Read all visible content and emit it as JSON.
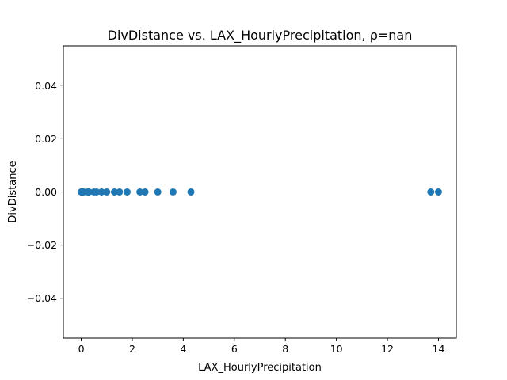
{
  "chart_data": {
    "type": "scatter",
    "title": "DivDistance vs. LAX_HourlyPrecipitation, ρ=nan",
    "xlabel": "LAX_HourlyPrecipitation",
    "ylabel": "DivDistance",
    "xlim": [
      -0.7,
      14.7
    ],
    "ylim": [
      -0.055,
      0.055
    ],
    "xticks": [
      0,
      2,
      4,
      6,
      8,
      10,
      12,
      14
    ],
    "xtick_labels": [
      "0",
      "2",
      "4",
      "6",
      "8",
      "10",
      "12",
      "14"
    ],
    "yticks": [
      -0.04,
      -0.02,
      0.0,
      0.02,
      0.04
    ],
    "ytick_labels": [
      "−0.04",
      "−0.02",
      "0.00",
      "0.02",
      "0.04"
    ],
    "grid": false,
    "marker_color": "#1f77b4",
    "points": [
      {
        "x": 0.0,
        "y": 0
      },
      {
        "x": 0.01,
        "y": 0
      },
      {
        "x": 0.02,
        "y": 0
      },
      {
        "x": 0.03,
        "y": 0
      },
      {
        "x": 0.05,
        "y": 0
      },
      {
        "x": 0.1,
        "y": 0
      },
      {
        "x": 0.25,
        "y": 0
      },
      {
        "x": 0.3,
        "y": 0
      },
      {
        "x": 0.5,
        "y": 0
      },
      {
        "x": 0.6,
        "y": 0
      },
      {
        "x": 0.8,
        "y": 0
      },
      {
        "x": 1.0,
        "y": 0
      },
      {
        "x": 1.3,
        "y": 0
      },
      {
        "x": 1.5,
        "y": 0
      },
      {
        "x": 1.8,
        "y": 0
      },
      {
        "x": 2.3,
        "y": 0
      },
      {
        "x": 2.5,
        "y": 0
      },
      {
        "x": 3.0,
        "y": 0
      },
      {
        "x": 3.6,
        "y": 0
      },
      {
        "x": 4.3,
        "y": 0
      },
      {
        "x": 13.7,
        "y": 0
      },
      {
        "x": 14.0,
        "y": 0
      }
    ]
  }
}
